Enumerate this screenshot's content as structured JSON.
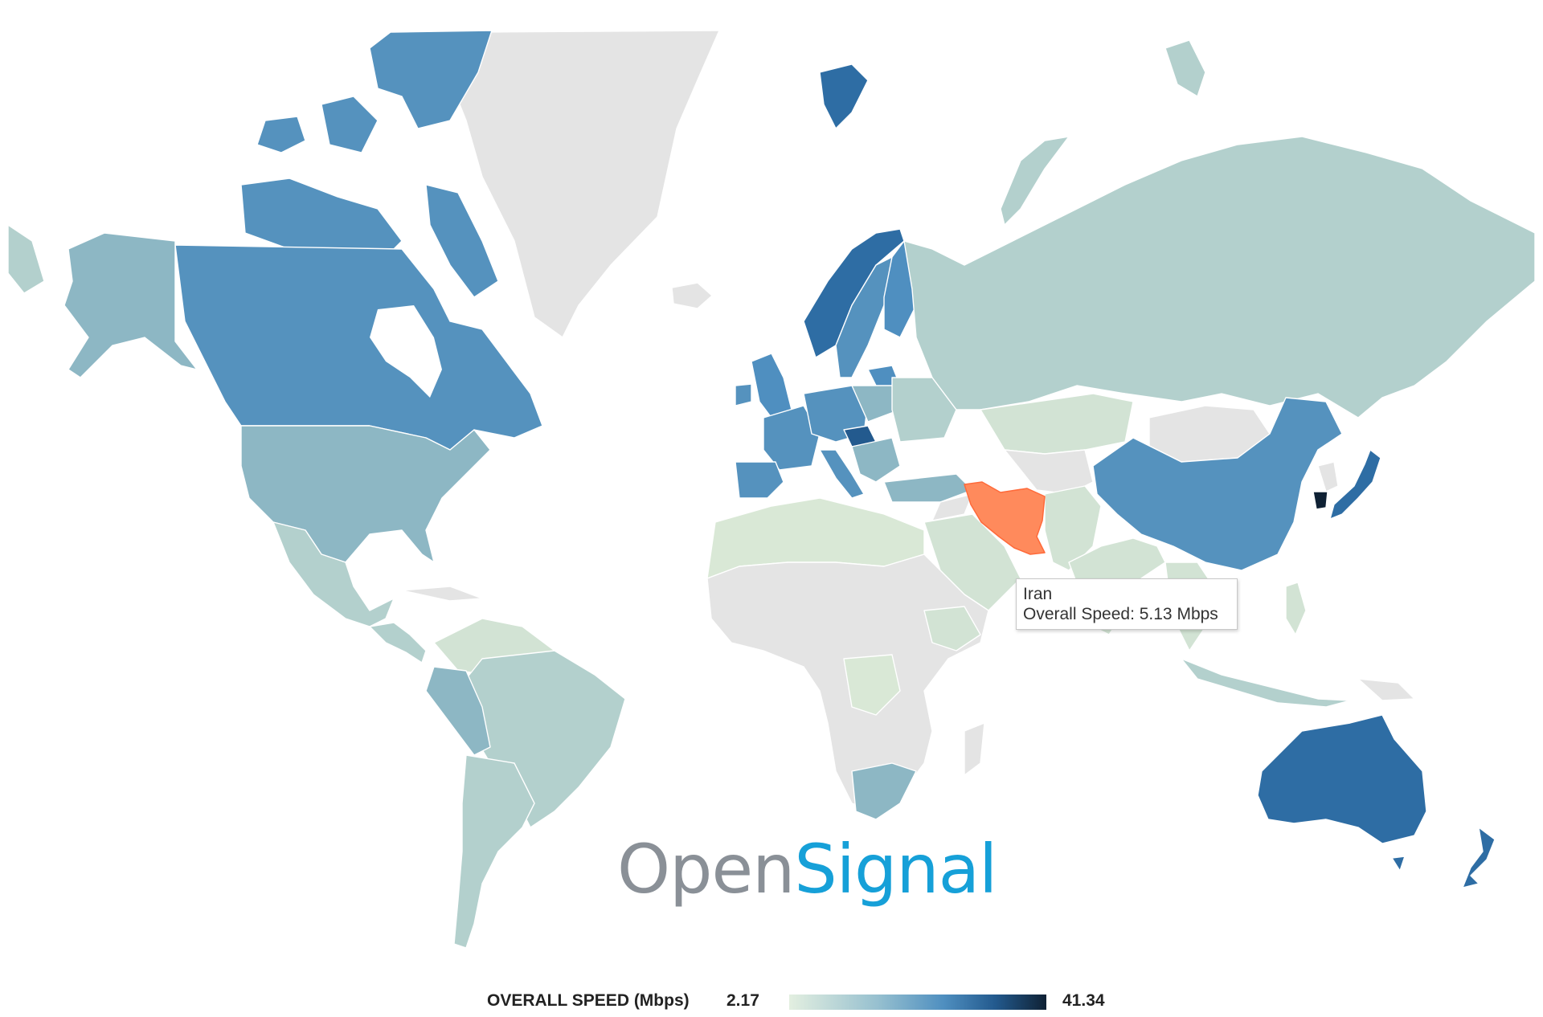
{
  "map": {
    "metric": "Overall Speed",
    "unit": "Mbps",
    "colors": {
      "no_data": "#e4e4e4",
      "scale_low": "#e3efe0",
      "scale_mid": "#5592be",
      "scale_high": "#0f2134",
      "highlight": "#ff8a5c",
      "tooltip_border": "#c8c8c8"
    },
    "countries": [
      {
        "name": "Iran",
        "value": 5.13,
        "highlighted": true
      }
    ]
  },
  "tooltip": {
    "country": "Iran",
    "line": "Overall Speed: 5.13 Mbps"
  },
  "logo": {
    "part1": "Open",
    "part2": "Signal"
  },
  "legend": {
    "title": "OVERALL SPEED (Mbps)",
    "min": "2.17",
    "max": "41.34"
  }
}
